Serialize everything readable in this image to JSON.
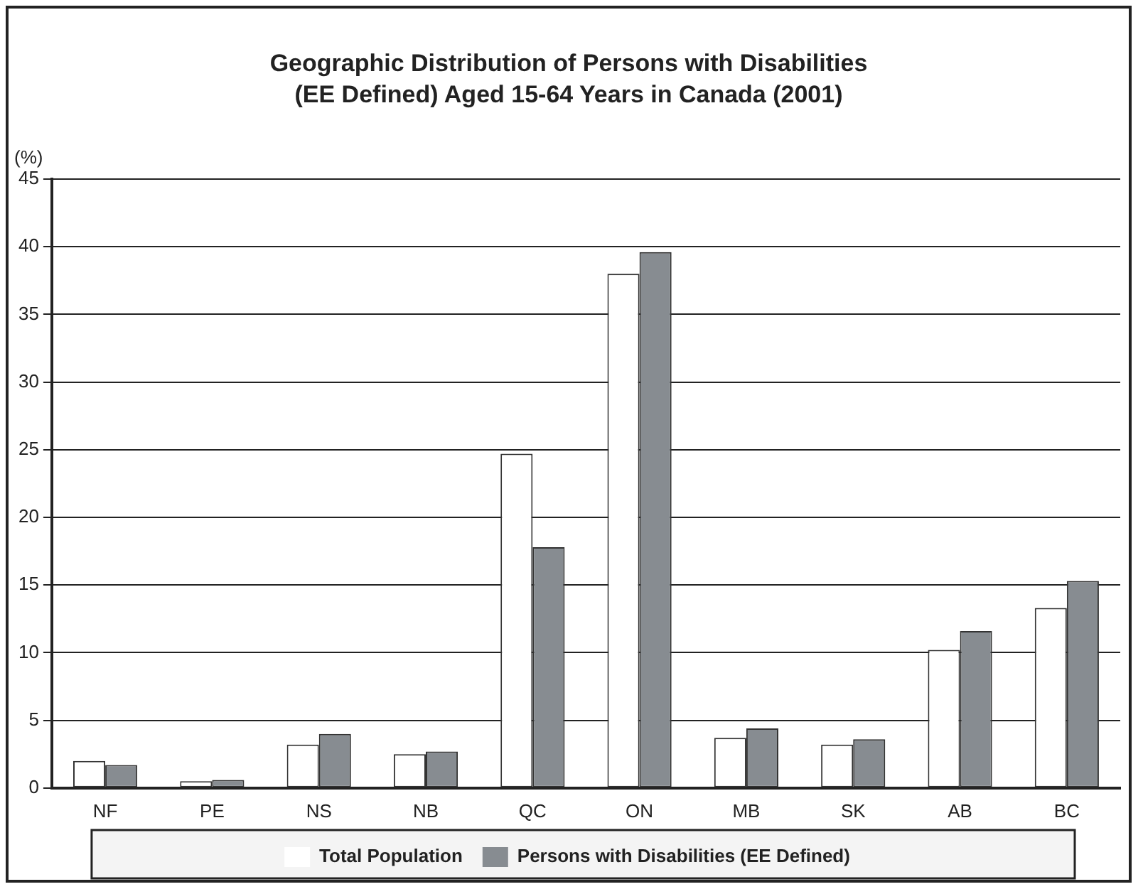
{
  "chart_data": {
    "type": "bar",
    "title": "Geographic Distribution of Persons with Disabilities (EE Defined) Aged 15-64 Years in Canada (2001)",
    "ylabel": "(%)",
    "categories": [
      "NF",
      "PE",
      "NS",
      "NB",
      "QC",
      "ON",
      "MB",
      "SK",
      "AB",
      "BC"
    ],
    "series": [
      {
        "name": "Total Population",
        "color": "#ffffff",
        "values": [
          2.0,
          0.5,
          3.2,
          2.5,
          24.7,
          38.0,
          3.7,
          3.2,
          10.2,
          13.3
        ]
      },
      {
        "name": "Persons with Disabilities (EE Defined)",
        "color": "#878c91",
        "values": [
          1.7,
          0.6,
          4.0,
          2.7,
          17.8,
          39.6,
          4.4,
          3.6,
          11.6,
          15.3
        ]
      }
    ],
    "ylim": [
      0,
      45
    ],
    "yticks": [
      0,
      5,
      10,
      15,
      20,
      25,
      30,
      35,
      40,
      45
    ],
    "grid": "y",
    "legend": "bottom"
  }
}
